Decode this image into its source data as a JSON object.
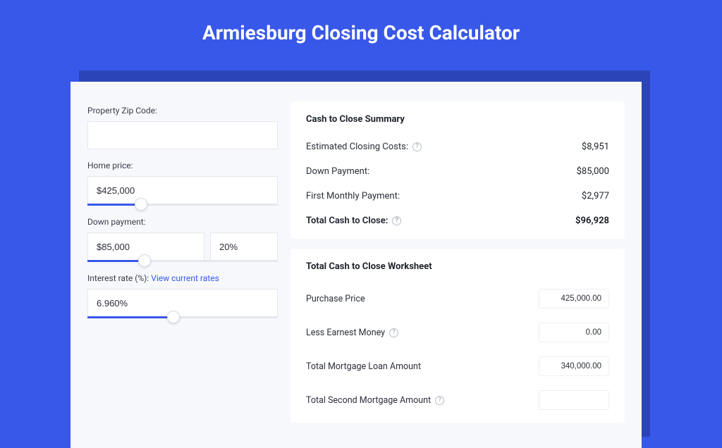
{
  "colors": {
    "page_bg": "#3858e9",
    "card_shadow": "#2b44b8",
    "card_bg": "#f6f8fb",
    "panel_bg": "#ffffff",
    "accent": "#3858e9",
    "border": "#e4e7ed",
    "text_primary": "#1e222a",
    "text_body": "#2b2f38",
    "text_muted": "#9aa1ad"
  },
  "title": "Armiesburg Closing Cost Calculator",
  "form": {
    "zip": {
      "label": "Property Zip Code:",
      "value": ""
    },
    "home_price": {
      "label": "Home price:",
      "value": "$425,000",
      "slider_pct": 28
    },
    "down_payment": {
      "label": "Down payment:",
      "value": "$85,000",
      "pct": "20%",
      "slider_pct": 30
    },
    "interest": {
      "label": "Interest rate (%):",
      "link_text": "View current rates",
      "value": "6.960%",
      "slider_pct": 45
    }
  },
  "summary": {
    "title": "Cash to Close Summary",
    "rows": [
      {
        "label": "Estimated Closing Costs:",
        "value": "$8,951",
        "help": true
      },
      {
        "label": "Down Payment:",
        "value": "$85,000",
        "help": false
      },
      {
        "label": "First Monthly Payment:",
        "value": "$2,977",
        "help": false
      }
    ],
    "total": {
      "label": "Total Cash to Close:",
      "value": "$96,928",
      "help": true
    }
  },
  "worksheet": {
    "title": "Total Cash to Close Worksheet",
    "rows": [
      {
        "label": "Purchase Price",
        "value": "425,000.00",
        "help": false
      },
      {
        "label": "Less Earnest Money",
        "value": "0.00",
        "help": true
      },
      {
        "label": "Total Mortgage Loan Amount",
        "value": "340,000.00",
        "help": false
      },
      {
        "label": "Total Second Mortgage Amount",
        "value": "",
        "help": true
      }
    ]
  }
}
